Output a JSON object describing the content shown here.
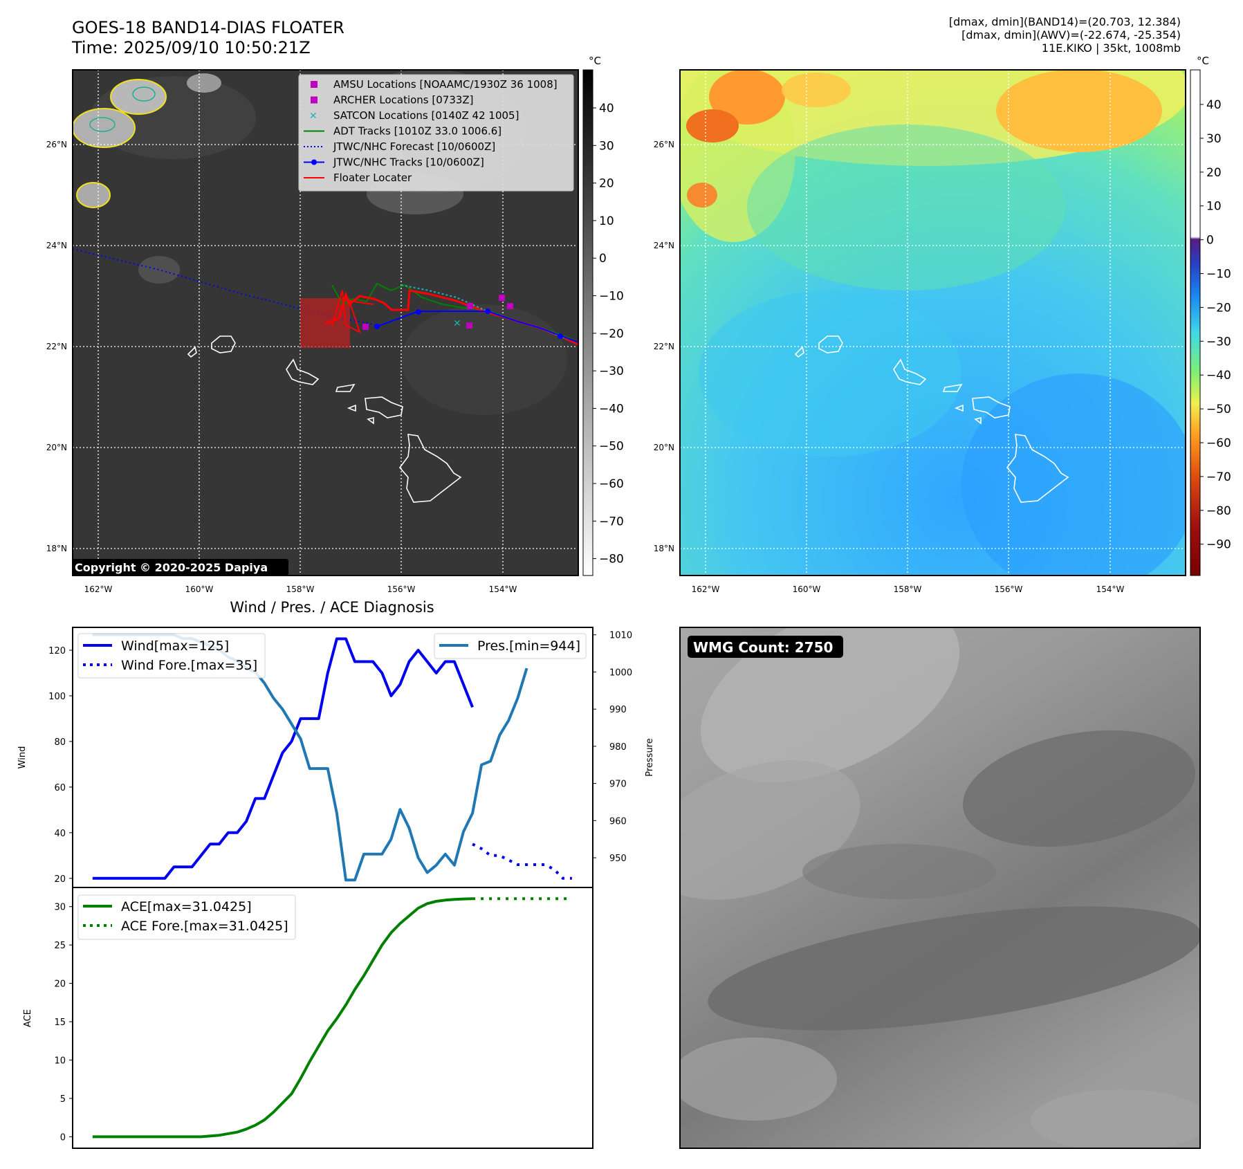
{
  "header": {
    "title_line1": "GOES-18 BAND14-DIAS FLOATER",
    "title_line2": "Time: 2025/09/10 10:50:21Z",
    "stats_line1": "[dmax, dmin](BAND14)=(20.703, 12.384)",
    "stats_line2": "[dmax, dmin](AWV)=(-22.674, -25.354)",
    "stats_line3": "11E.KIKO | 35kt, 1008mb"
  },
  "map_panel": {
    "lat_labels": [
      "26°N",
      "24°N",
      "22°N",
      "20°N",
      "18°N"
    ],
    "lon_labels": [
      "162°W",
      "160°W",
      "158°W",
      "156°W",
      "154°W"
    ],
    "copyright": "Copyright © 2020-2025 Dapiya",
    "legend": [
      {
        "label": "AMSU Locations [NOAAMC/1930Z 36 1008]",
        "color": "#c000c0",
        "marker": "square"
      },
      {
        "label": "ARCHER Locations [0733Z]",
        "color": "#c000c0",
        "marker": "square"
      },
      {
        "label": "SATCON Locations [0140Z 42 1005]",
        "color": "#20b0b0",
        "marker": "x"
      },
      {
        "label": "ADT Tracks [1010Z 33.0 1006.6]",
        "color": "#008000",
        "marker": "line"
      },
      {
        "label": "JTWC/NHC Forecast [10/0600Z]",
        "color": "#0000ff",
        "marker": "dotted"
      },
      {
        "label": "JTWC/NHC Tracks [10/0600Z]",
        "color": "#0000ff",
        "marker": "line-dot"
      },
      {
        "label": "Floater Locater",
        "color": "#ff0000",
        "marker": "line"
      }
    ]
  },
  "colorbar_gray": {
    "unit": "°C",
    "ticks": [
      "40",
      "30",
      "20",
      "10",
      "0",
      "−10",
      "−20",
      "−30",
      "−40",
      "−50",
      "−60",
      "−70",
      "−80"
    ]
  },
  "colorbar_wv": {
    "unit": "°C",
    "ticks": [
      "40",
      "30",
      "20",
      "10",
      "0",
      "−10",
      "−20",
      "−30",
      "−40",
      "−50",
      "−60",
      "−70",
      "−80",
      "−90"
    ]
  },
  "wv_panel": {
    "lat_labels": [
      "26°N",
      "24°N",
      "22°N",
      "20°N",
      "18°N"
    ],
    "lon_labels": [
      "162°W",
      "160°W",
      "158°W",
      "156°W",
      "154°W"
    ]
  },
  "wmg_panel": {
    "badge": "WMG Count: 2750"
  },
  "chart_data": [
    {
      "type": "line",
      "title": "Wind / Pres. / ACE Diagnosis",
      "ylabel": "Wind",
      "ylabel_right": "Pressure",
      "ylim": [
        16,
        130
      ],
      "y2lim": [
        942,
        1012
      ],
      "yticks": [
        20,
        40,
        60,
        80,
        100,
        120
      ],
      "y2ticks": [
        950,
        960,
        970,
        980,
        990,
        1000,
        1010
      ],
      "series": [
        {
          "name": "Wind[max=125]",
          "color": "#0000ee",
          "style": "solid",
          "x": [
            0,
            1,
            2,
            3,
            4,
            5,
            6,
            7,
            8,
            9,
            10,
            11,
            12,
            13,
            14,
            15,
            16,
            17,
            18,
            19,
            20,
            21,
            22,
            23,
            24,
            25,
            26,
            27,
            28,
            29,
            30,
            31,
            32,
            33,
            34,
            35,
            36,
            37,
            38,
            39,
            40,
            41,
            42
          ],
          "values": [
            20,
            20,
            20,
            20,
            20,
            20,
            20,
            20,
            20,
            25,
            25,
            25,
            30,
            35,
            35,
            40,
            40,
            45,
            55,
            55,
            65,
            75,
            80,
            90,
            90,
            90,
            110,
            125,
            125,
            115,
            115,
            115,
            110,
            100,
            105,
            115,
            120,
            115,
            110,
            115,
            115,
            105,
            95
          ]
        },
        {
          "name": "Wind Fore.[max=35]",
          "color": "#0000ee",
          "style": "dotted",
          "x": [
            42,
            43,
            44,
            45,
            46,
            47,
            48,
            49,
            50,
            51,
            52,
            53
          ],
          "values": [
            35,
            33,
            30,
            30,
            28,
            26,
            26,
            26,
            26,
            24,
            20,
            20
          ]
        },
        {
          "name": "Pres.[min=944]",
          "color": "#1f77b4",
          "style": "solid",
          "axis": "right",
          "x": [
            0,
            1,
            2,
            3,
            4,
            5,
            6,
            7,
            8,
            9,
            10,
            11,
            12,
            13,
            14,
            15,
            16,
            17,
            18,
            19,
            20,
            21,
            22,
            23,
            24,
            25,
            26,
            27,
            28,
            29,
            30,
            31,
            32,
            33,
            34,
            35,
            36,
            37,
            38,
            39,
            40,
            41,
            42,
            43,
            44,
            45,
            46,
            47,
            48
          ],
          "values": [
            1010,
            1010,
            1010,
            1010,
            1010,
            1010,
            1010,
            1010,
            1010,
            1010,
            1009,
            1009,
            1008,
            1007,
            1006,
            1004,
            1003,
            1001,
            1000,
            997,
            993,
            990,
            986,
            982,
            974,
            974,
            974,
            962,
            944,
            944,
            951,
            951,
            951,
            955,
            963,
            958,
            950,
            946,
            948,
            951,
            948,
            957,
            962,
            975,
            976,
            983,
            987,
            993,
            1001
          ]
        }
      ]
    },
    {
      "type": "line",
      "ylabel": "ACE",
      "ylim": [
        -1.5,
        32.5
      ],
      "yticks": [
        0,
        5,
        10,
        15,
        20,
        25,
        30
      ],
      "series": [
        {
          "name": "ACE[max=31.0425]",
          "color": "#008000",
          "style": "solid",
          "x": [
            0,
            2,
            4,
            6,
            8,
            10,
            12,
            14,
            16,
            17,
            18,
            19,
            20,
            21,
            22,
            23,
            24,
            25,
            26,
            27,
            28,
            29,
            30,
            31,
            32,
            33,
            34,
            35,
            36,
            37,
            38,
            39,
            40,
            41,
            42
          ],
          "values": [
            0,
            0,
            0,
            0,
            0,
            0,
            0,
            0.2,
            0.6,
            1.0,
            1.5,
            2.2,
            3.2,
            4.4,
            5.6,
            7.6,
            9.8,
            11.8,
            13.8,
            15.4,
            17.2,
            19.2,
            21.0,
            23.0,
            25.0,
            26.6,
            27.8,
            28.8,
            29.8,
            30.4,
            30.7,
            30.85,
            30.95,
            31.0,
            31.0425
          ]
        },
        {
          "name": "ACE Fore.[max=31.0425]",
          "color": "#008000",
          "style": "dotted",
          "x": [
            42,
            53
          ],
          "values": [
            31.0425,
            31.0425
          ]
        }
      ]
    }
  ]
}
